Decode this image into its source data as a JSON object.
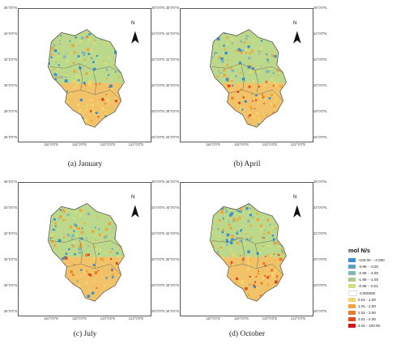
{
  "panels": [
    {
      "caption": "(a) January",
      "key": "jan"
    },
    {
      "caption": "(b) April",
      "key": "apr"
    },
    {
      "caption": "(c) July",
      "key": "jul"
    },
    {
      "caption": "(d) October",
      "key": "oct"
    }
  ],
  "lat_ticks": [
    "36°0'0\"N",
    "34°0'0\"N",
    "32°0'0\"N",
    "30°0'0\"N",
    "28°0'0\"N",
    "26°0'0\"N"
  ],
  "lon_ticks": [
    "116°0'0\"E",
    "118°0'0\"E",
    "120°0'0\"E",
    "122°0'0\"E"
  ],
  "north_label": "N",
  "legend": {
    "title": "mol N/s",
    "items": [
      {
        "label": "-100.00 - -4.000",
        "color": "#3a8fd0"
      },
      {
        "label": "-3.99 - -3.00",
        "color": "#5e9fc4"
      },
      {
        "label": "-2.99 - -2.00",
        "color": "#86b6b8"
      },
      {
        "label": "-1.99 - -1.00",
        "color": "#a9cd8e"
      },
      {
        "label": "-0.99 - -0.01",
        "color": "#cfe07f"
      },
      {
        "label": "0.000000",
        "color": "#ffffff"
      },
      {
        "label": "0.01 - 1.00",
        "color": "#f3d36a"
      },
      {
        "label": "1.01 - 2.00",
        "color": "#f0a63c"
      },
      {
        "label": "2.01 - 3.00",
        "color": "#ea7a2c"
      },
      {
        "label": "3.01 - 4.00",
        "color": "#e2471f"
      },
      {
        "label": "4.01 - 100.00",
        "color": "#d4141a"
      }
    ]
  },
  "region_colors": {
    "base_north": "#bcd88a",
    "base_south": "#f1c268",
    "border": "#666666",
    "hot": "#e2471f",
    "cool": "#3a8fd0"
  }
}
